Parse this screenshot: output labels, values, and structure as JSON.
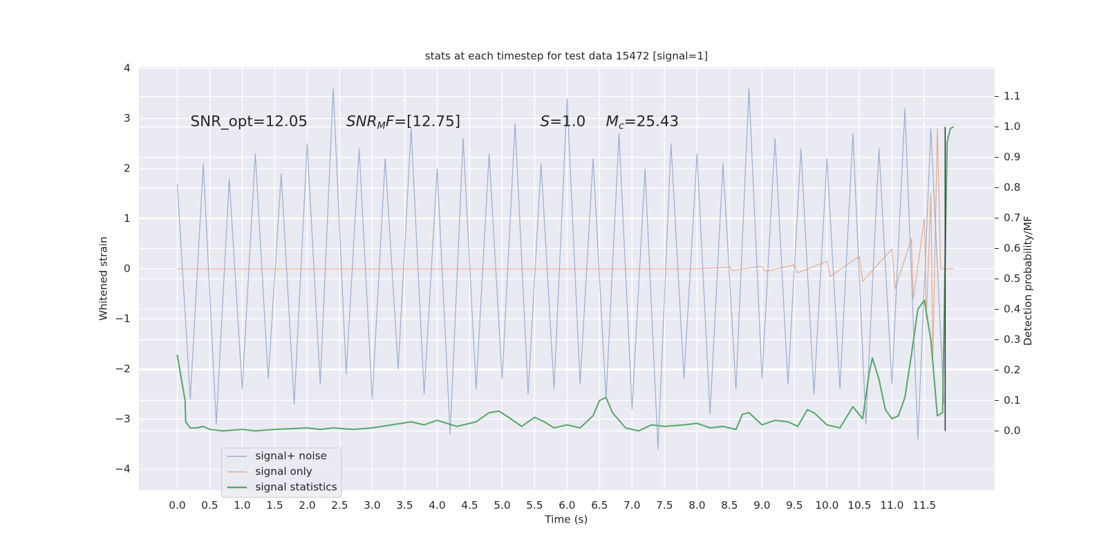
{
  "chart_data": {
    "type": "line",
    "title": "stats at each timestep for test data 15472 [signal=1]",
    "xlabel": "Time (s)",
    "ylabel": "Whitened strain",
    "y2label": "Detection probability/MF",
    "xlim": [
      -0.59,
      12.58
    ],
    "ylim": [
      -4.42,
      4.03
    ],
    "y2lim": [
      -0.195,
      1.197
    ],
    "grid": true,
    "xticks": [
      {
        "value": 0,
        "label": "0.0"
      },
      0.5,
      {
        "value": 1,
        "label": "1.0"
      },
      1.5,
      {
        "value": 2,
        "label": "2.0"
      },
      2.5,
      {
        "value": 3,
        "label": "3.0"
      },
      3.5,
      {
        "value": 4,
        "label": "4.0"
      },
      4.5,
      {
        "value": 5,
        "label": "5.0"
      },
      5.5,
      {
        "value": 6,
        "label": "6.0"
      },
      6.5,
      {
        "value": 7,
        "label": "7.0"
      },
      7.5,
      {
        "value": 8,
        "label": "8.0"
      },
      8.5,
      {
        "value": 9,
        "label": "9.0"
      },
      9.5,
      {
        "value": 10,
        "label": "10.0"
      },
      10.5,
      {
        "value": 11,
        "label": "11.0"
      },
      11.5
    ],
    "yticks": [
      {
        "value": -4,
        "label": "−4"
      },
      {
        "value": -3,
        "label": "−3"
      },
      {
        "value": -2,
        "label": "−2"
      },
      {
        "value": -1,
        "label": "−1"
      },
      0,
      1,
      2,
      3,
      4
    ],
    "y2ticks": [
      {
        "value": 0,
        "label": "0.0"
      },
      0.1,
      0.2,
      0.3,
      0.4,
      0.5,
      0.6,
      0.7,
      0.8,
      0.9,
      {
        "value": 1,
        "label": "1.0"
      },
      1.1
    ],
    "legend": "lower left",
    "series": [
      {
        "name": "signal+ noise",
        "color": "#4c72b0",
        "x": [
          0,
          0.2,
          0.4,
          0.6,
          0.8,
          1,
          1.2,
          1.4,
          1.6,
          1.8,
          2,
          2.2,
          2.4,
          2.6,
          2.8,
          3,
          3.2,
          3.4,
          3.6,
          3.8,
          4,
          4.2,
          4.4,
          4.6,
          4.8,
          5,
          5.2,
          5.4,
          5.6,
          5.8,
          6,
          6.2,
          6.4,
          6.6,
          6.8,
          7,
          7.2,
          7.4,
          7.6,
          7.8,
          8,
          8.2,
          8.4,
          8.6,
          8.8,
          9,
          9.2,
          9.4,
          9.6,
          9.8,
          10,
          10.2,
          10.4,
          10.6,
          10.8,
          11,
          11.2,
          11.4,
          11.6,
          11.8
        ],
        "values": [
          1.7,
          -2.6,
          2.1,
          -3.1,
          1.8,
          -2.4,
          2.3,
          -2.2,
          1.9,
          -2.7,
          2.5,
          -2.3,
          3.6,
          -2.1,
          2.4,
          -2.6,
          2.2,
          -2.0,
          2.8,
          -2.5,
          2.0,
          -3.3,
          2.6,
          -2.4,
          2.3,
          -2.2,
          2.9,
          -2.5,
          2.1,
          -2.4,
          3.4,
          -2.3,
          2.2,
          -2.6,
          2.7,
          -2.8,
          2.0,
          -3.6,
          2.5,
          -2.2,
          2.3,
          -2.9,
          2.1,
          -2.4,
          3.6,
          -2.2,
          2.6,
          -2.3,
          2.4,
          -2.5,
          2.2,
          -2.4,
          2.7,
          -3.1,
          2.4,
          -2.3,
          3.2,
          -3.4,
          2.8,
          -2.7
        ]
      },
      {
        "name": "signal only",
        "color": "#dd8452",
        "x": [
          0,
          8.0,
          8.5,
          8.55,
          9.0,
          9.05,
          9.5,
          9.55,
          10.0,
          10.05,
          10.5,
          10.55,
          11.0,
          11.05,
          11.3,
          11.33,
          11.5,
          11.53,
          11.6,
          11.63,
          11.7,
          11.75,
          11.95
        ],
        "values": [
          0,
          0,
          0.03,
          -0.03,
          0.05,
          -0.05,
          0.08,
          -0.08,
          0.15,
          -0.15,
          0.25,
          -0.25,
          0.4,
          -0.4,
          0.6,
          -0.6,
          1.0,
          -1.0,
          1.5,
          -1.8,
          2.8,
          0,
          0
        ]
      },
      {
        "name": "signal statistics",
        "color": "#55a868",
        "axis": "y2",
        "x": [
          0,
          0.12,
          0.13,
          0.2,
          0.3,
          0.4,
          0.5,
          0.7,
          1.0,
          1.2,
          1.5,
          2.0,
          2.2,
          2.4,
          2.7,
          3.0,
          3.3,
          3.6,
          3.8,
          4.0,
          4.3,
          4.6,
          4.8,
          4.95,
          5.1,
          5.3,
          5.5,
          5.65,
          5.8,
          6.0,
          6.2,
          6.4,
          6.5,
          6.6,
          6.7,
          6.9,
          7.1,
          7.3,
          7.5,
          7.8,
          8.0,
          8.2,
          8.4,
          8.6,
          8.7,
          8.8,
          9.0,
          9.2,
          9.4,
          9.55,
          9.7,
          9.8,
          10.0,
          10.2,
          10.4,
          10.55,
          10.65,
          10.7,
          10.8,
          10.9,
          11.0,
          11.1,
          11.2,
          11.3,
          11.4,
          11.5,
          11.6,
          11.7,
          11.78,
          11.85,
          11.9,
          11.95
        ],
        "values": [
          0.25,
          0.1,
          0.03,
          0.01,
          0.01,
          0.015,
          0.005,
          0.0,
          0.005,
          0.0,
          0.005,
          0.01,
          0.005,
          0.01,
          0.005,
          0.01,
          0.02,
          0.03,
          0.02,
          0.035,
          0.015,
          0.03,
          0.06,
          0.065,
          0.045,
          0.015,
          0.045,
          0.03,
          0.01,
          0.02,
          0.01,
          0.05,
          0.1,
          0.11,
          0.06,
          0.01,
          0.0,
          0.02,
          0.015,
          0.02,
          0.025,
          0.01,
          0.015,
          0.005,
          0.055,
          0.06,
          0.02,
          0.035,
          0.03,
          0.015,
          0.07,
          0.06,
          0.02,
          0.01,
          0.08,
          0.04,
          0.19,
          0.24,
          0.17,
          0.07,
          0.04,
          0.05,
          0.11,
          0.25,
          0.4,
          0.43,
          0.3,
          0.05,
          0.06,
          0.95,
          0.995,
          1.0
        ]
      }
    ],
    "vlines": [
      {
        "x": 11.82,
        "y2range": [
          0.0,
          1.0
        ],
        "color": "#333333"
      }
    ],
    "annotations": [
      {
        "parts": [
          {
            "text": "SNR_opt=12.05"
          }
        ]
      },
      {
        "parts": [
          {
            "text": "SNR",
            "italic": true
          },
          {
            "text": "M",
            "italic": true,
            "sub": true
          },
          {
            "text": "F",
            "italic": true
          },
          {
            "text": "=[12.75]"
          }
        ]
      },
      {
        "parts": [
          {
            "text": "S",
            "italic": true
          },
          {
            "text": "=1.0"
          }
        ]
      },
      {
        "parts": [
          {
            "text": "M",
            "italic": true
          },
          {
            "text": "c",
            "italic": true,
            "sub": true
          },
          {
            "text": "=25.43"
          }
        ]
      }
    ]
  }
}
